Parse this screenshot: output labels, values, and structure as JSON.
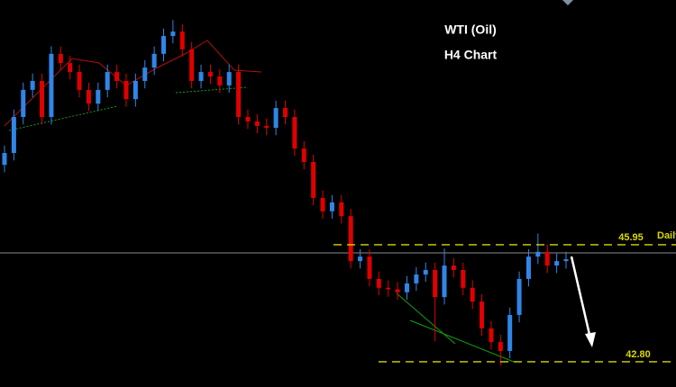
{
  "chart_data": {
    "type": "candlestick",
    "title": "WTI (Oil)",
    "subtitle": "H4 Chart",
    "up_color": "#2f86e8",
    "down_color": "#e00000",
    "level_color": "#d8d800",
    "ylim": [
      42.12,
      52.54
    ],
    "levels": [
      45.95,
      {
        "value": 42.8,
        "label": "42.80"
      }
    ],
    "level_note": "Daily",
    "open": [
      48.1,
      48.42,
      49.39,
      50.12,
      50.36,
      49.39,
      51.09,
      50.84,
      50.6,
      50.12,
      49.75,
      50.12,
      50.6,
      50.36,
      49.87,
      50.36,
      50.72,
      51.09,
      51.57,
      51.69,
      51.21,
      50.36,
      50.6,
      50.48,
      50.24,
      50.6,
      49.39,
      49.27,
      49.15,
      49.1,
      49.63,
      49.39,
      48.54,
      48.18,
      47.21,
      46.85,
      47.09,
      46.72,
      45.51,
      45.63,
      45.03,
      44.79,
      44.75,
      44.67,
      44.91,
      45.15,
      45.27,
      44.54,
      45.39,
      45.27,
      44.79,
      44.42,
      43.7,
      43.33,
      43.09,
      44.06,
      45.03,
      45.63,
      45.76,
      45.39,
      45.51
    ],
    "high": [
      48.62,
      49.59,
      50.32,
      50.56,
      50.56,
      51.29,
      51.29,
      51.04,
      50.8,
      50.32,
      50.32,
      50.8,
      50.8,
      50.56,
      50.56,
      50.92,
      51.29,
      51.77,
      52.0,
      51.89,
      51.41,
      50.8,
      50.8,
      50.68,
      50.8,
      50.8,
      49.59,
      49.47,
      49.35,
      49.83,
      49.83,
      49.59,
      48.74,
      48.38,
      47.41,
      47.29,
      47.29,
      46.92,
      45.83,
      45.83,
      45.23,
      44.99,
      44.95,
      45.11,
      45.35,
      45.47,
      45.47,
      45.85,
      45.59,
      45.47,
      44.99,
      44.62,
      43.9,
      43.53,
      44.26,
      45.23,
      45.83,
      46.25,
      45.96,
      45.71,
      45.76
    ],
    "low": [
      47.9,
      48.22,
      49.19,
      49.92,
      49.19,
      49.19,
      50.64,
      50.4,
      49.92,
      49.55,
      49.55,
      49.92,
      50.16,
      49.67,
      49.67,
      50.16,
      50.52,
      50.89,
      51.37,
      51.01,
      50.16,
      50.16,
      50.28,
      50.04,
      50.04,
      49.19,
      49.07,
      48.95,
      48.9,
      48.9,
      49.19,
      48.34,
      47.98,
      47.01,
      46.65,
      46.65,
      46.52,
      45.31,
      45.31,
      44.83,
      44.59,
      44.55,
      44.47,
      44.47,
      44.71,
      44.95,
      43.35,
      44.34,
      45.07,
      44.59,
      44.22,
      43.5,
      43.13,
      42.7,
      42.89,
      43.86,
      44.83,
      45.43,
      45.19,
      45.19,
      45.31
    ],
    "close": [
      48.42,
      49.39,
      50.12,
      50.36,
      49.39,
      51.09,
      50.84,
      50.6,
      50.12,
      49.75,
      50.12,
      50.6,
      50.36,
      49.87,
      50.36,
      50.72,
      51.09,
      51.57,
      51.69,
      51.21,
      50.36,
      50.6,
      50.48,
      50.24,
      50.6,
      49.39,
      49.27,
      49.15,
      49.1,
      49.63,
      49.39,
      48.54,
      48.18,
      47.21,
      46.85,
      47.09,
      46.72,
      45.51,
      45.63,
      45.03,
      44.79,
      44.75,
      44.67,
      44.91,
      45.15,
      45.27,
      44.54,
      45.39,
      45.27,
      44.79,
      44.42,
      43.7,
      43.33,
      43.09,
      44.06,
      45.03,
      45.63,
      45.76,
      45.39,
      45.51,
      45.56
    ]
  }
}
